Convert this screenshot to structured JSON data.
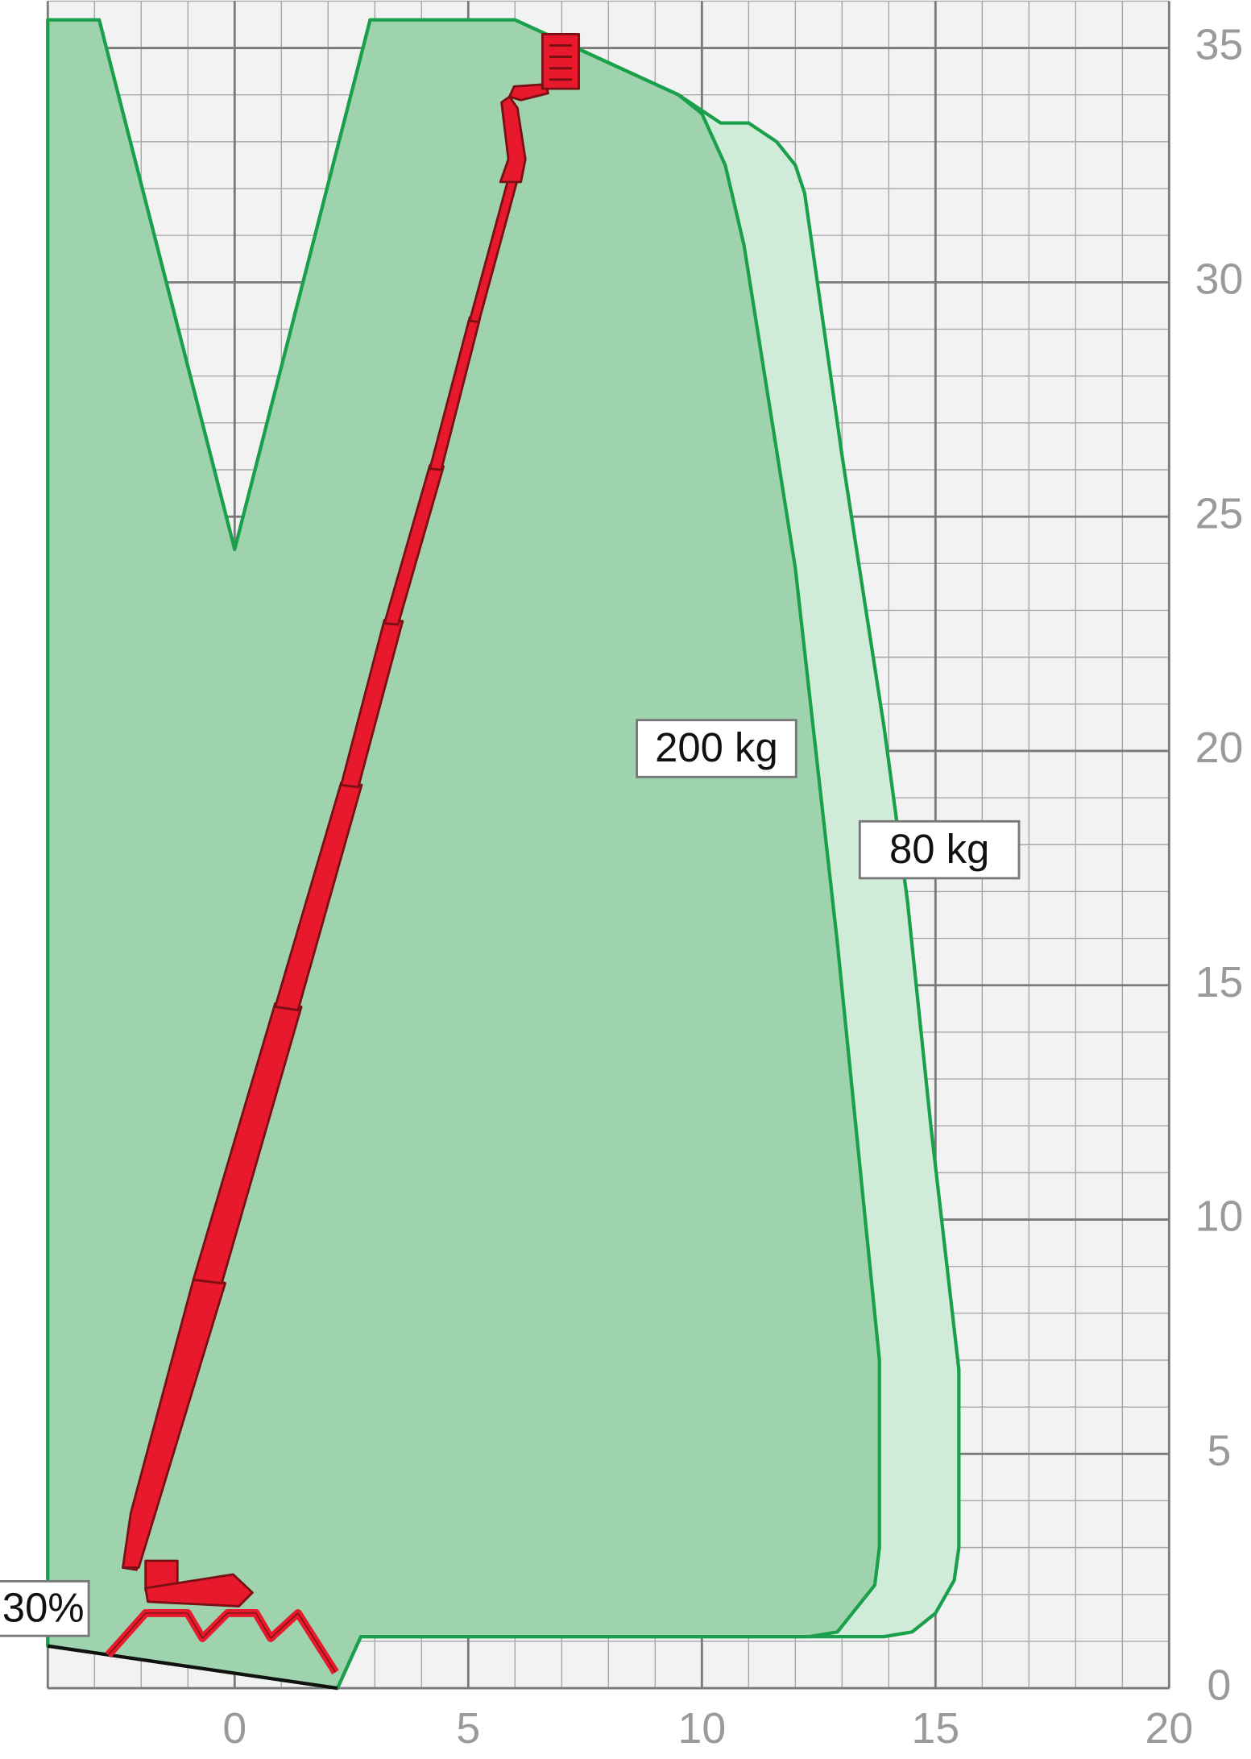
{
  "chart_data": {
    "type": "area",
    "xlim": [
      -4,
      20
    ],
    "ylim": [
      0,
      36
    ],
    "xticks": [
      0,
      5,
      10,
      15,
      20
    ],
    "yticks": [
      0,
      5,
      10,
      15,
      20,
      25,
      30,
      35
    ],
    "grid": true,
    "annotations": [
      "30%"
    ],
    "series": [
      {
        "name": "80 kg",
        "color": "#d1ebd9",
        "x": [
          -4,
          -2.9,
          0,
          2.9,
          6.0,
          7.1,
          9.5,
          10.4,
          11.0,
          11.6,
          12.0,
          12.2,
          13.0,
          13.9,
          14.4,
          14.9,
          15.5,
          15.5,
          15.4,
          15.0,
          14.5,
          13.9,
          2.7,
          2.2,
          -4
        ],
        "values": [
          35.6,
          35.6,
          24.3,
          35.6,
          35.6,
          35.1,
          34.0,
          33.4,
          33.4,
          33.0,
          32.5,
          31.9,
          26.3,
          20.5,
          16.8,
          12.0,
          6.8,
          3.0,
          2.3,
          1.6,
          1.2,
          1.1,
          1.1,
          0,
          0.9
        ]
      },
      {
        "name": "200 kg",
        "color": "#9fd3ae",
        "x": [
          -4,
          -2.9,
          0,
          2.9,
          6.0,
          9.5,
          10.0,
          10.5,
          10.9,
          12.0,
          12.9,
          13.8,
          13.8,
          13.7,
          12.9,
          12.3,
          2.7,
          2.2,
          -4
        ],
        "values": [
          35.6,
          35.6,
          24.3,
          35.6,
          35.6,
          34.0,
          33.6,
          32.5,
          30.8,
          23.9,
          15.9,
          7.0,
          3.0,
          2.2,
          1.2,
          1.1,
          1.1,
          0,
          0.9
        ]
      }
    ]
  }
}
